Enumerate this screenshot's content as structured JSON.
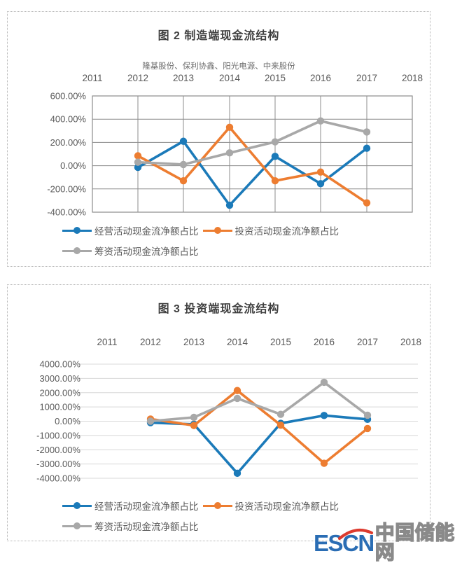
{
  "watermark": {
    "brand": "ESCN",
    "site_name": "中国储能网",
    "brand_color": "#2a6db4",
    "accent_color": "#dd3b2f",
    "site_color": "#8a8a8a"
  },
  "chart_data": [
    {
      "type": "line",
      "title": "图 2 制造端现金流结构",
      "subtitle": "隆基股份、保利协鑫、阳光电源、中来股份",
      "x_axis_labels": [
        "2011",
        "2012",
        "2013",
        "2014",
        "2015",
        "2016",
        "2017",
        "2018"
      ],
      "categories": [
        "2012",
        "2013",
        "2014",
        "2015",
        "2016",
        "2017"
      ],
      "ylim": [
        -400,
        600
      ],
      "ytick_labels": [
        "600.00%",
        "400.00%",
        "200.00%",
        "0.00%",
        "-200.00%",
        "-400.00%"
      ],
      "grid": {
        "horizontal": true,
        "vertical": true,
        "border": true,
        "color": "#8c8c8c"
      },
      "legend_position": "bottom",
      "series": [
        {
          "name": "经营活动现金流净额占比",
          "color": "#1b7ab9",
          "values": [
            -15,
            210,
            -340,
            80,
            -155,
            150
          ]
        },
        {
          "name": "投资活动现金流净额占比",
          "color": "#ed7d31",
          "values": [
            85,
            -130,
            330,
            -130,
            -55,
            -320
          ]
        },
        {
          "name": "筹资活动现金流净额占比",
          "color": "#a8a8a8",
          "values": [
            30,
            10,
            110,
            205,
            385,
            290
          ]
        }
      ]
    },
    {
      "type": "line",
      "title": "图 3 投资端现金流结构",
      "subtitle": "",
      "x_axis_labels": [
        "2011",
        "2012",
        "2013",
        "2014",
        "2015",
        "2016",
        "2017",
        "2018"
      ],
      "categories": [
        "2012",
        "2013",
        "2014",
        "2015",
        "2016",
        "2017"
      ],
      "ylim": [
        -4000,
        4000
      ],
      "ytick_labels": [
        "4000.00%",
        "3000.00%",
        "2000.00%",
        "1000.00%",
        "0.00%",
        "-1000.00%",
        "-2000.00%",
        "-3000.00%",
        "-4000.00%"
      ],
      "grid": {
        "horizontal": true,
        "vertical": false,
        "border": false,
        "color": "#d8d8d8"
      },
      "legend_position": "bottom",
      "series": [
        {
          "name": "经营活动现金流净额占比",
          "color": "#1b7ab9",
          "values": [
            -100,
            -220,
            -3650,
            -150,
            400,
            130
          ]
        },
        {
          "name": "投资活动现金流净额占比",
          "color": "#ed7d31",
          "values": [
            150,
            -300,
            2150,
            -280,
            -2950,
            -510
          ]
        },
        {
          "name": "筹资活动现金流净额占比",
          "color": "#a8a8a8",
          "values": [
            0,
            270,
            1600,
            480,
            2725,
            420
          ]
        }
      ]
    }
  ]
}
